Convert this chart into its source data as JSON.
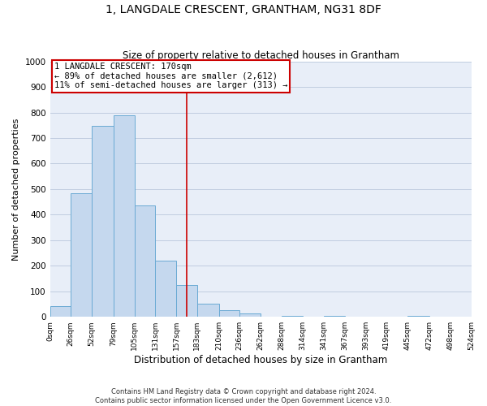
{
  "title": "1, LANGDALE CRESCENT, GRANTHAM, NG31 8DF",
  "subtitle": "Size of property relative to detached houses in Grantham",
  "xlabel": "Distribution of detached houses by size in Grantham",
  "ylabel": "Number of detached properties",
  "footer_line1": "Contains HM Land Registry data © Crown copyright and database right 2024.",
  "footer_line2": "Contains public sector information licensed under the Open Government Licence v3.0.",
  "annotation_line1": "1 LANGDALE CRESCENT: 170sqm",
  "annotation_line2": "← 89% of detached houses are smaller (2,612)",
  "annotation_line3": "11% of semi-detached houses are larger (313) →",
  "bar_color": "#c5d8ee",
  "bar_edge_color": "#6aaad4",
  "background_color": "#e8eef8",
  "grid_color": "#c0cce0",
  "ref_line_color": "#cc0000",
  "annotation_box_edge": "#cc0000",
  "bin_edges": [
    0,
    26,
    52,
    79,
    105,
    131,
    157,
    183,
    210,
    236,
    262,
    288,
    314,
    341,
    367,
    393,
    419,
    445,
    472,
    498,
    524
  ],
  "bar_heights": [
    42,
    485,
    748,
    790,
    437,
    220,
    125,
    52,
    27,
    12,
    0,
    5,
    0,
    3,
    0,
    0,
    0,
    3,
    0,
    0
  ],
  "ref_line_x": 170,
  "ylim": [
    0,
    1000
  ],
  "yticks": [
    0,
    100,
    200,
    300,
    400,
    500,
    600,
    700,
    800,
    900,
    1000
  ],
  "xtick_labels": [
    "0sqm",
    "26sqm",
    "52sqm",
    "79sqm",
    "105sqm",
    "131sqm",
    "157sqm",
    "183sqm",
    "210sqm",
    "236sqm",
    "262sqm",
    "288sqm",
    "314sqm",
    "341sqm",
    "367sqm",
    "393sqm",
    "419sqm",
    "445sqm",
    "472sqm",
    "498sqm",
    "524sqm"
  ],
  "figsize": [
    6.0,
    5.0
  ],
  "dpi": 100
}
